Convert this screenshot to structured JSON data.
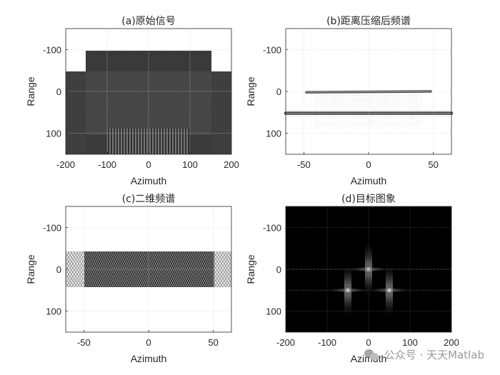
{
  "chart_data": [
    {
      "id": "a",
      "type": "heatmap",
      "title": "(a)原始信号",
      "xlabel": "Azimuth",
      "ylabel": "Range",
      "xlim": [
        -200,
        200
      ],
      "ylim": [
        150,
        -150
      ],
      "xticks": [
        -200,
        -100,
        0,
        100,
        200
      ],
      "yticks": [
        -100,
        0,
        100
      ],
      "grid": true,
      "description_values": {
        "regions": [
          {
            "x": [
              -200,
              200
            ],
            "y": [
              -50,
              150
            ],
            "level": 0.22
          },
          {
            "x": [
              -160,
              160
            ],
            "y": [
              -100,
              150
            ],
            "level": 0.22
          }
        ]
      }
    },
    {
      "id": "b",
      "type": "heatmap",
      "title": "(b)距离压缩后频谱",
      "xlabel": "Azimuth",
      "ylabel": "Range",
      "xlim": [
        -64,
        64
      ],
      "ylim": [
        150,
        -150
      ],
      "xticks": [
        -50,
        0,
        50
      ],
      "yticks": [
        -100,
        0,
        100
      ],
      "grid": true,
      "lines": [
        {
          "x": [
            -48,
            48
          ],
          "y": [
            2,
            0
          ]
        },
        {
          "x": [
            -64,
            64
          ],
          "y": [
            52,
            52
          ]
        }
      ]
    },
    {
      "id": "c",
      "type": "heatmap",
      "title": "(c)二维频谱",
      "xlabel": "Azimuth",
      "ylabel": "Range",
      "xlim": [
        -64,
        64
      ],
      "ylim": [
        150,
        -150
      ],
      "xticks": [
        -50,
        0,
        50
      ],
      "yticks": [
        -100,
        0,
        100
      ],
      "grid": true,
      "band": {
        "x": [
          -64,
          64
        ],
        "y": [
          -40,
          40
        ]
      }
    },
    {
      "id": "d",
      "type": "heatmap",
      "title": "(d)目标图象",
      "xlabel": "Azimuth",
      "ylabel": "Range",
      "xlim": [
        -200,
        200
      ],
      "ylim": [
        150,
        -150
      ],
      "xticks": [
        -200,
        -100,
        0,
        100,
        200
      ],
      "yticks": [
        -100,
        0,
        100
      ],
      "grid": true,
      "points": [
        {
          "x": 0,
          "y": 0
        },
        {
          "x": -50,
          "y": 50
        },
        {
          "x": 50,
          "y": 50
        }
      ]
    }
  ],
  "watermark": {
    "text": "公众号 · 天天Matlab",
    "icon": "wechat-icon"
  }
}
